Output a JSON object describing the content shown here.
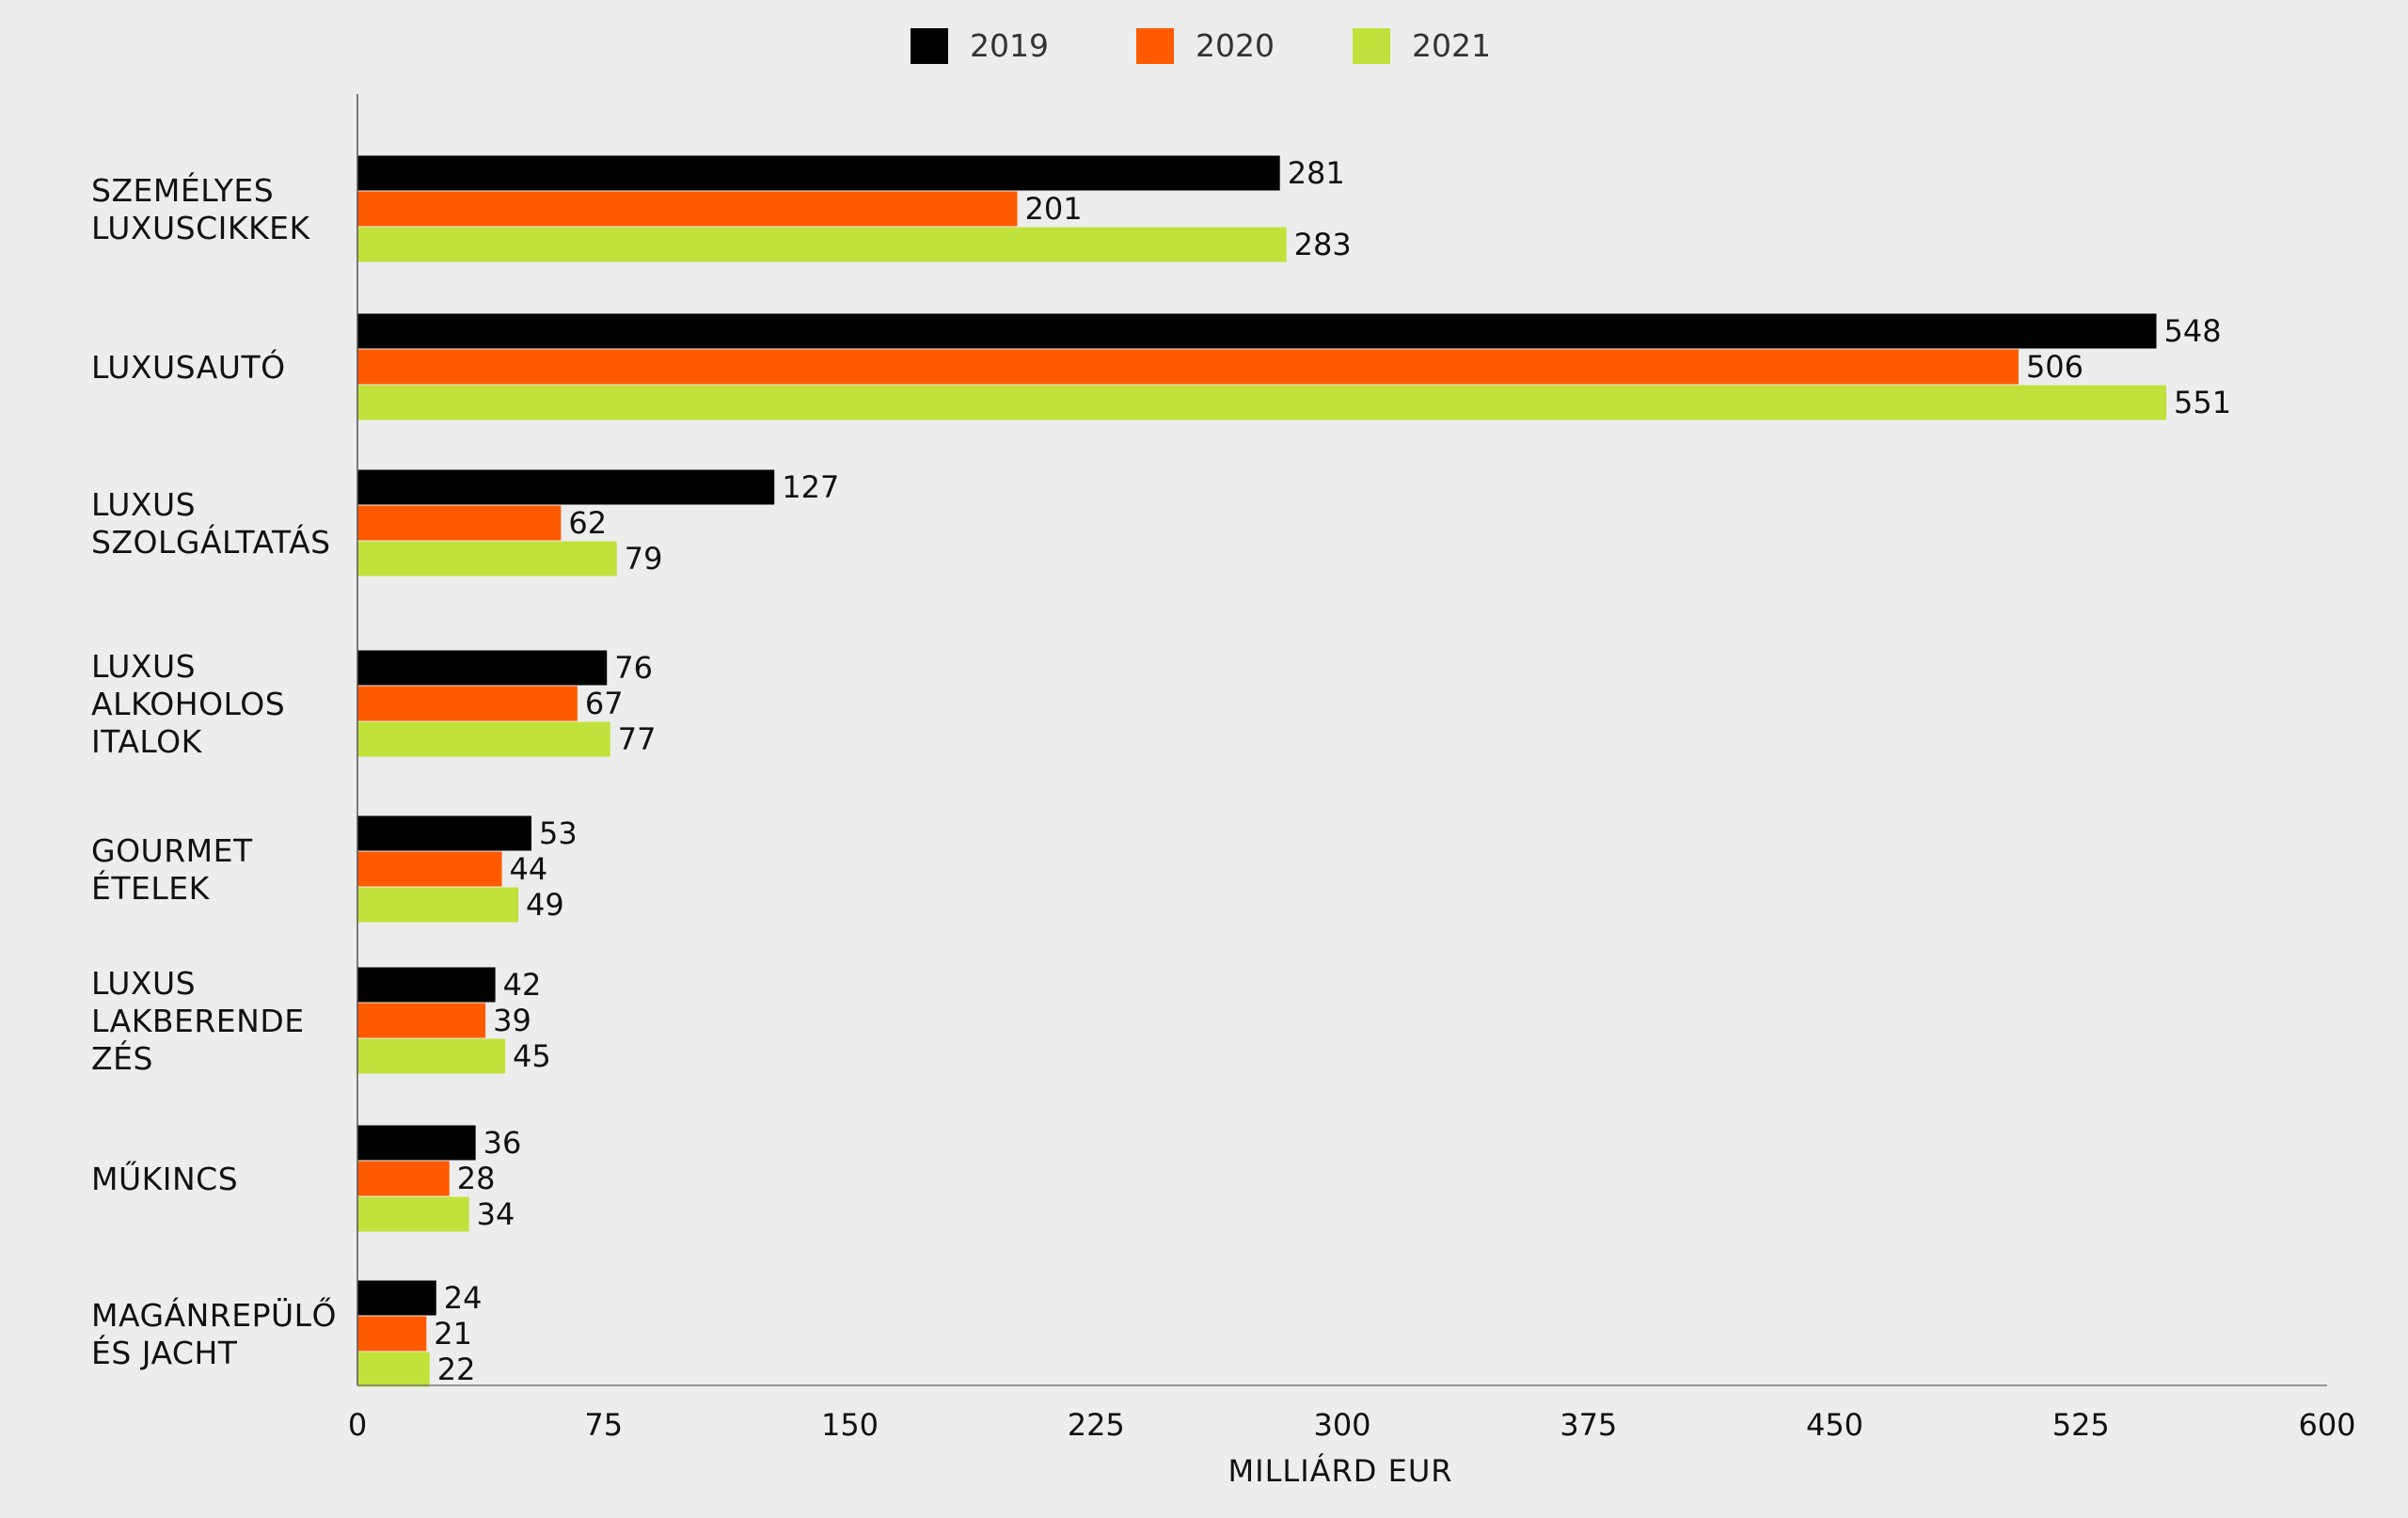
{
  "chart_data": {
    "type": "bar",
    "orientation": "horizontal",
    "categories": [
      [
        "SZEMÉLYES",
        "LUXUSCIKKEK"
      ],
      [
        "LUXUSAUTÓ"
      ],
      [
        "LUXUS",
        "SZOLGÁLTATÁS"
      ],
      [
        "LUXUS",
        "ALKOHOLOS",
        "ITALOK"
      ],
      [
        "GOURMET",
        "ÉTELEK"
      ],
      [
        "LUXUS",
        "LAKBERENDE",
        "ZÉS"
      ],
      [
        "MŰKINCS"
      ],
      [
        "MAGÁNREPÜLŐ",
        "ÉS JACHT"
      ]
    ],
    "series": [
      {
        "name": "2019",
        "color": "#000000",
        "values": [
          281,
          548,
          127,
          76,
          53,
          42,
          36,
          24
        ]
      },
      {
        "name": "2020",
        "color": "#ff5a00",
        "values": [
          201,
          506,
          62,
          67,
          44,
          39,
          28,
          21
        ]
      },
      {
        "name": "2021",
        "color": "#c0e23a",
        "values": [
          283,
          551,
          79,
          77,
          49,
          45,
          34,
          22
        ]
      }
    ],
    "xticks": [
      "0",
      "75",
      "150",
      "225",
      "300",
      "375",
      "450",
      "525",
      "600"
    ],
    "xlabel": "MILLIÁRD EUR",
    "ylabel": "",
    "title": "",
    "legend_position": "top-center",
    "grid": false
  }
}
